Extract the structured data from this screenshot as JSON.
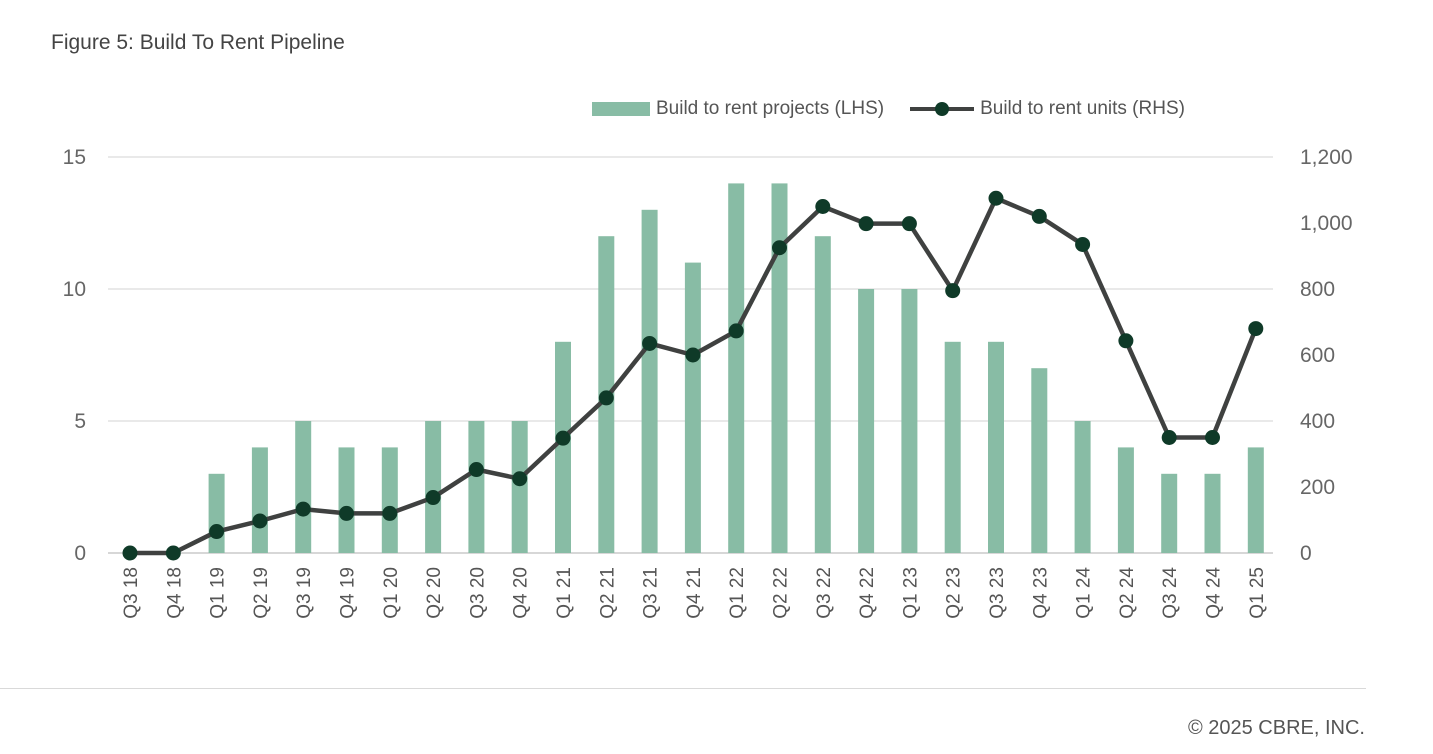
{
  "chart_data": {
    "type": "bar",
    "title": "Figure 5: Build To Rent Pipeline",
    "categories": [
      "Q3 18",
      "Q4 18",
      "Q1 19",
      "Q2 19",
      "Q3 19",
      "Q4 19",
      "Q1 20",
      "Q2 20",
      "Q3 20",
      "Q4 20",
      "Q1 21",
      "Q2 21",
      "Q3 21",
      "Q4 21",
      "Q1 22",
      "Q2 22",
      "Q3 22",
      "Q4 22",
      "Q1 23",
      "Q2 23",
      "Q3 23",
      "Q4 23",
      "Q1 24",
      "Q2 24",
      "Q3 24",
      "Q4 24",
      "Q1 25"
    ],
    "series": [
      {
        "name": "Build to rent projects (LHS)",
        "type": "bar",
        "axis": "left",
        "color": "#88bca5",
        "values": [
          0,
          0,
          3,
          4,
          5,
          4,
          4,
          5,
          5,
          5,
          8,
          12,
          13,
          11,
          14,
          14,
          12,
          10,
          10,
          8,
          8,
          7,
          5,
          4,
          3,
          3,
          4
        ]
      },
      {
        "name": "Build to rent units (RHS)",
        "type": "line",
        "axis": "right",
        "color": "#3f4140",
        "marker_color": "#0f3a28",
        "values": [
          0,
          0,
          65,
          97,
          133,
          120,
          120,
          168,
          253,
          225,
          348,
          470,
          635,
          600,
          673,
          925,
          1050,
          998,
          998,
          795,
          1075,
          1020,
          935,
          643,
          350,
          350,
          680
        ]
      }
    ],
    "left_axis": {
      "ylim": [
        0,
        15
      ],
      "ticks": [
        0,
        5,
        10,
        15
      ],
      "tick_labels": [
        "0",
        "5",
        "10",
        "15"
      ]
    },
    "right_axis": {
      "ylim": [
        0,
        1200
      ],
      "ticks": [
        0,
        200,
        400,
        600,
        800,
        1000,
        1200
      ],
      "tick_labels": [
        "0",
        "200",
        "400",
        "600",
        "800",
        "1,000",
        "1,200"
      ]
    },
    "grid": true,
    "legend": "top-right"
  },
  "footer": {
    "copyright": "© 2025 CBRE, INC."
  }
}
